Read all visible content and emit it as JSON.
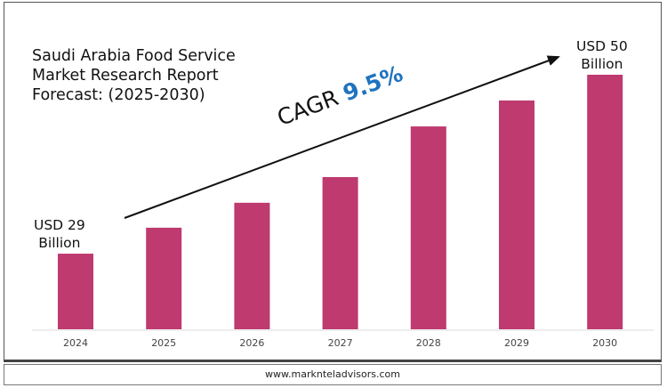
{
  "chart_data": {
    "type": "bar",
    "title": [
      "Saudi Arabia Food Service",
      "Market Research Report",
      "Forecast: (2025-2030)"
    ],
    "categories": [
      "2024",
      "2025",
      "2026",
      "2027",
      "2028",
      "2029",
      "2030"
    ],
    "values": [
      29,
      null,
      null,
      null,
      null,
      null,
      50
    ],
    "relative_bar_levels": [
      0.297,
      0.399,
      0.497,
      0.598,
      0.797,
      0.899,
      1.0
    ],
    "unit": "USD Billion",
    "annotations": {
      "start_label": [
        "USD 29",
        "Billion"
      ],
      "end_label": [
        "USD 50",
        "Billion"
      ],
      "cagr_label": "CAGR",
      "cagr_value": "9.5%"
    },
    "bar_color": "#BE3A6F",
    "cagr_color": "#1F73C0",
    "grid": false,
    "legend": "none"
  },
  "footer": {
    "website": "www.marknteladvisors.com"
  }
}
